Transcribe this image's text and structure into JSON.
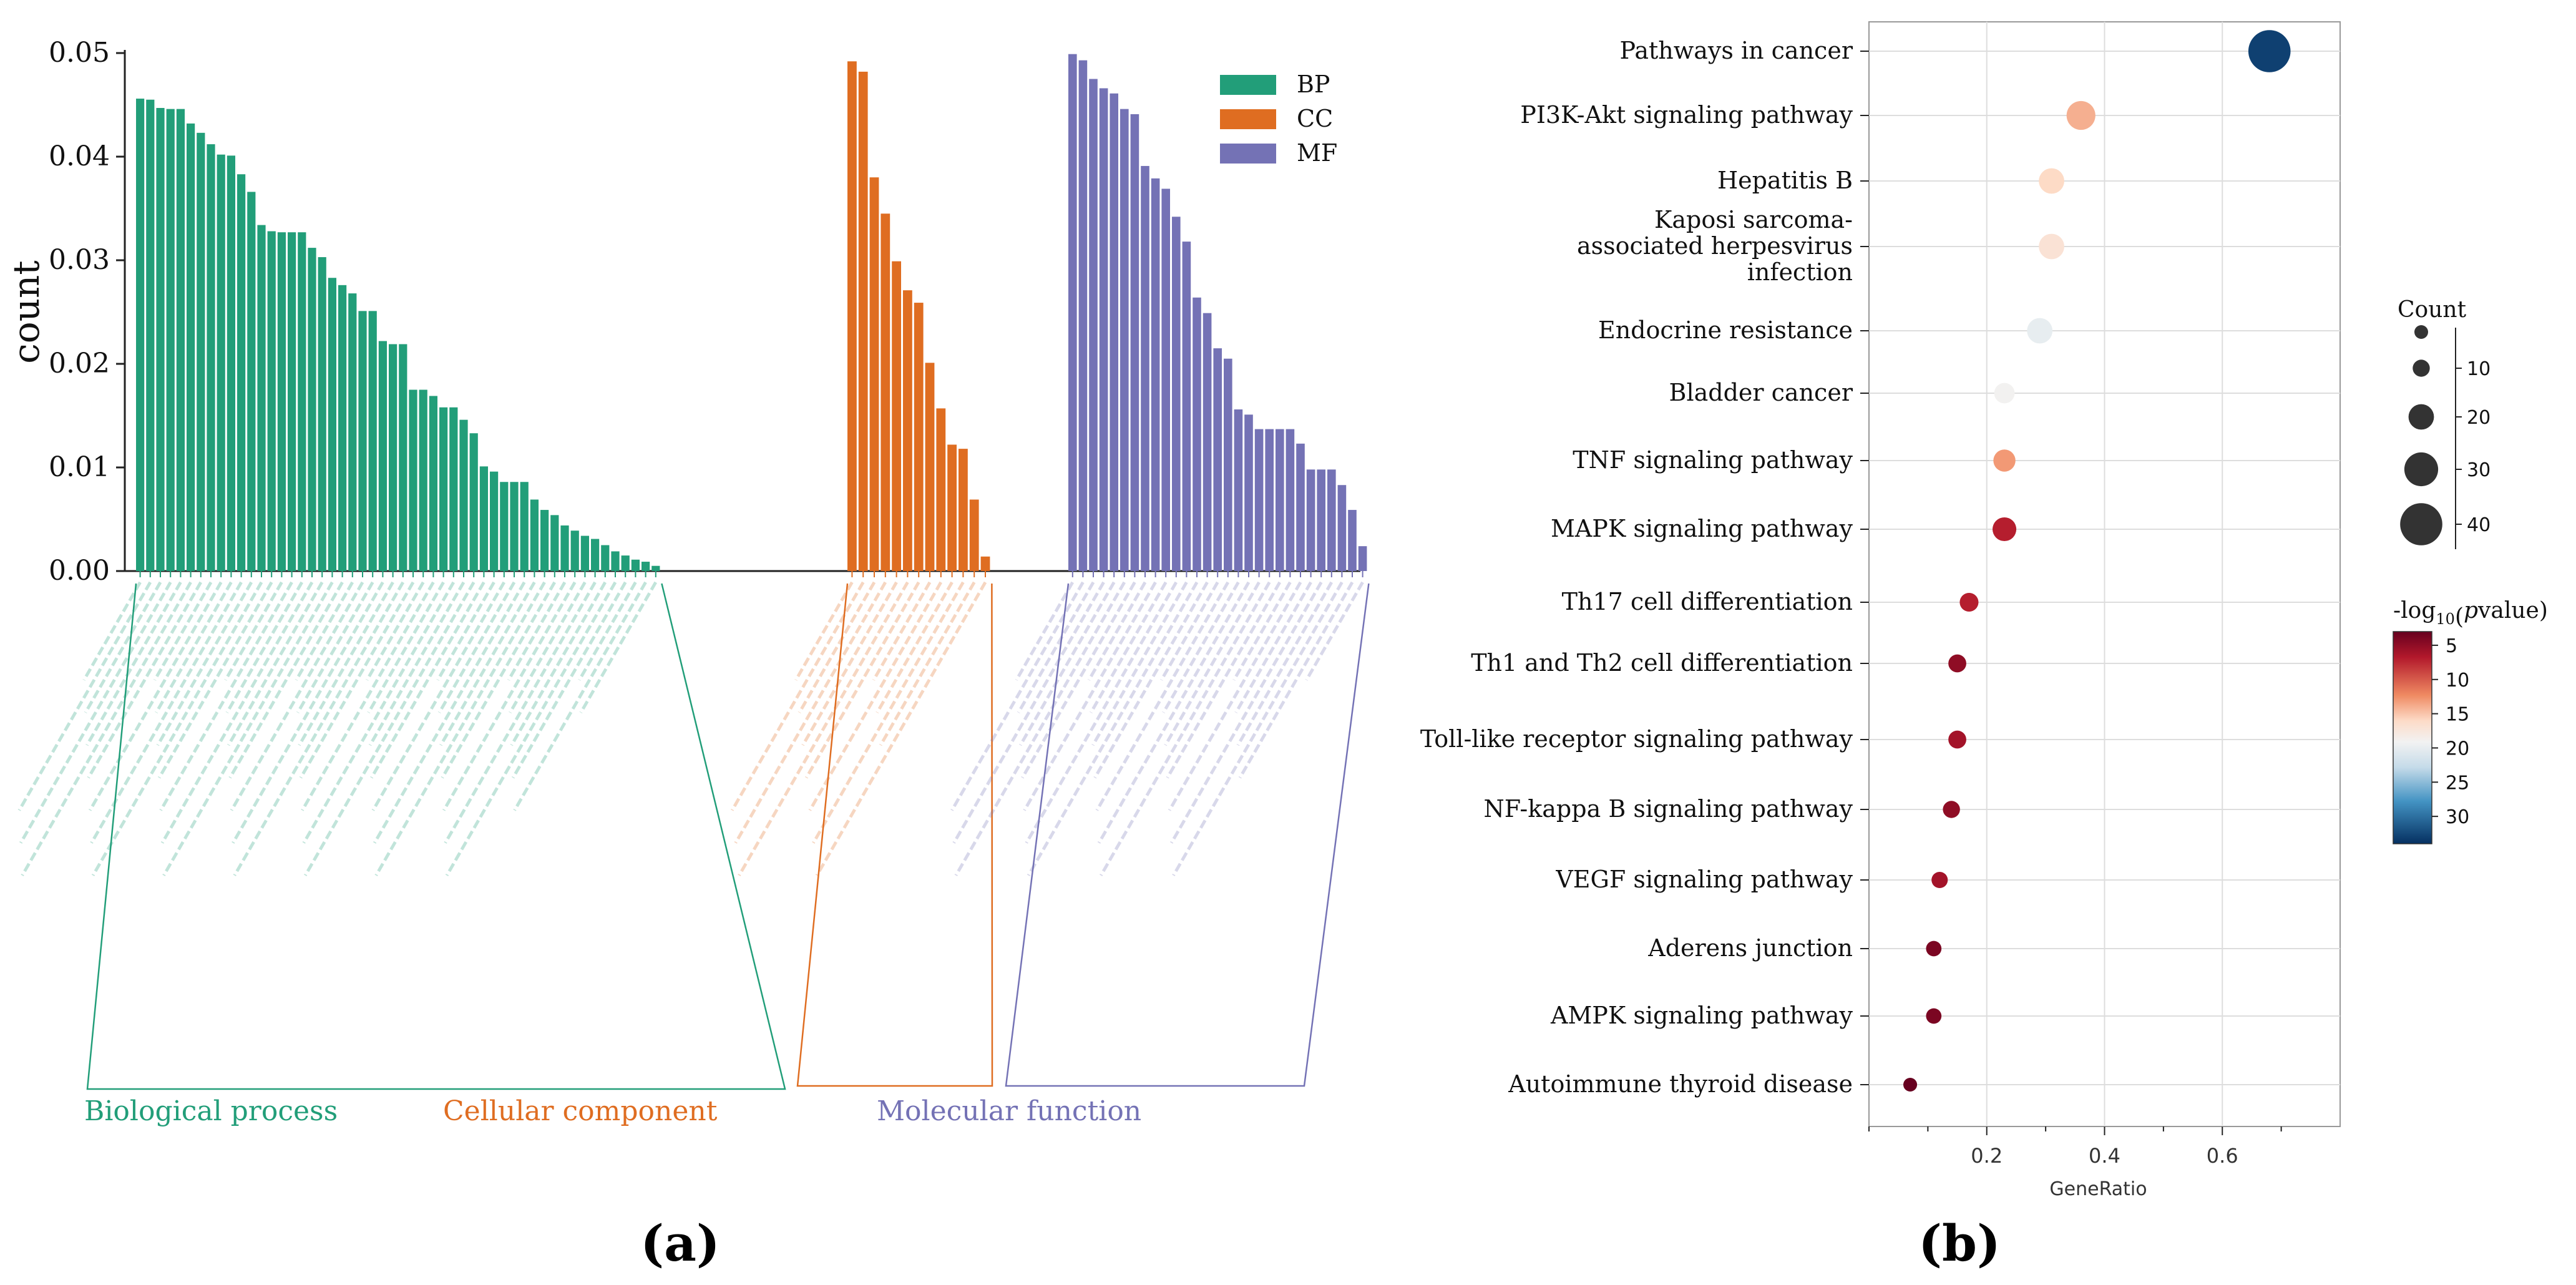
{
  "colors": {
    "bp": "#229E79",
    "cc": "#DF6D21",
    "mf": "#7472B5",
    "axis": "#222222",
    "grid": "#dddddd"
  },
  "panel_labels": {
    "a": "(a)",
    "b": "(b)"
  },
  "chart_data": [
    {
      "type": "bar",
      "title": "",
      "ylabel": "count",
      "xlabel": "",
      "ylim": [
        0,
        0.05
      ],
      "yticks": [
        "0.00",
        "0.01",
        "0.02",
        "0.03",
        "0.04",
        "0.05"
      ],
      "legend": {
        "position": "top-right",
        "entries": [
          "BP",
          "CC",
          "MF"
        ]
      },
      "group_labels": [
        "Biological process",
        "Cellular component",
        "Molecular function"
      ],
      "series": [
        {
          "name": "BP",
          "values": [
            0.0456,
            0.0455,
            0.0447,
            0.0446,
            0.0446,
            0.0432,
            0.0423,
            0.0412,
            0.0402,
            0.0401,
            0.0383,
            0.0366,
            0.0334,
            0.0328,
            0.0327,
            0.0327,
            0.0327,
            0.0312,
            0.0303,
            0.0283,
            0.0276,
            0.0268,
            0.0251,
            0.0251,
            0.0222,
            0.0219,
            0.0219,
            0.0175,
            0.0175,
            0.0169,
            0.0158,
            0.0158,
            0.0146,
            0.0133,
            0.0101,
            0.0096,
            0.0086,
            0.0086,
            0.0086,
            0.0069,
            0.0059,
            0.0054,
            0.0044,
            0.0039,
            0.0034,
            0.0031,
            0.0025,
            0.0019,
            0.0015,
            0.0011,
            0.0009,
            0.0005
          ]
        },
        {
          "name": "CC",
          "values": [
            0.0492,
            0.0482,
            0.038,
            0.0345,
            0.0299,
            0.0271,
            0.0259,
            0.0201,
            0.0157,
            0.0122,
            0.0118,
            0.0069,
            0.0014
          ]
        },
        {
          "name": "MF",
          "values": [
            0.0499,
            0.0493,
            0.0475,
            0.0466,
            0.0461,
            0.0446,
            0.0441,
            0.0391,
            0.0379,
            0.0369,
            0.0342,
            0.0318,
            0.0264,
            0.0249,
            0.0215,
            0.0205,
            0.0156,
            0.0151,
            0.0137,
            0.0137,
            0.0137,
            0.0137,
            0.0123,
            0.0098,
            0.0098,
            0.0098,
            0.0083,
            0.0059,
            0.0024
          ]
        }
      ]
    },
    {
      "type": "scatter",
      "title": "",
      "xlabel": "GeneRatio",
      "xlim": [
        0,
        0.8
      ],
      "xticks": [
        "0.2",
        "0.4",
        "0.6"
      ],
      "size_legend": {
        "title": "Count",
        "values": [
          "10",
          "20",
          "30",
          "40"
        ]
      },
      "color_legend": {
        "title_pre": "-log",
        "title_sub": "10",
        "title_open": "(",
        "title_p": "p",
        "title_post": "value)",
        "ticks": [
          "5",
          "10",
          "15",
          "20",
          "25",
          "30"
        ],
        "range": [
          3,
          34
        ]
      },
      "categories": [
        "Pathways in cancer",
        "PI3K-Akt signaling pathway",
        "Hepatitis B",
        "Kaposi sarcoma-\nassociated herpesvirus\ninfection",
        "Endocrine resistance",
        "Bladder cancer",
        "TNF signaling pathway",
        "MAPK signaling pathway",
        "Th17 cell differentiation",
        "Th1 and Th2 cell differentiation",
        "Toll-like receptor signaling pathway",
        "NF-kappa B signaling pathway",
        "VEGF signaling pathway",
        "Aderens junction",
        "AMPK signaling pathway",
        "Autoimmune thyroid disease"
      ],
      "gene_ratio": [
        0.68,
        0.36,
        0.31,
        0.31,
        0.29,
        0.23,
        0.23,
        0.23,
        0.17,
        0.15,
        0.15,
        0.14,
        0.12,
        0.11,
        0.11,
        0.07
      ],
      "count": [
        40,
        24,
        20,
        20,
        20,
        14,
        16,
        18,
        12,
        11,
        11,
        10,
        9,
        8,
        8,
        6
      ],
      "neg_log10_p": [
        33,
        14,
        16,
        17,
        20,
        19,
        13,
        7,
        7,
        5,
        6,
        5,
        6,
        4,
        4,
        3
      ]
    }
  ]
}
